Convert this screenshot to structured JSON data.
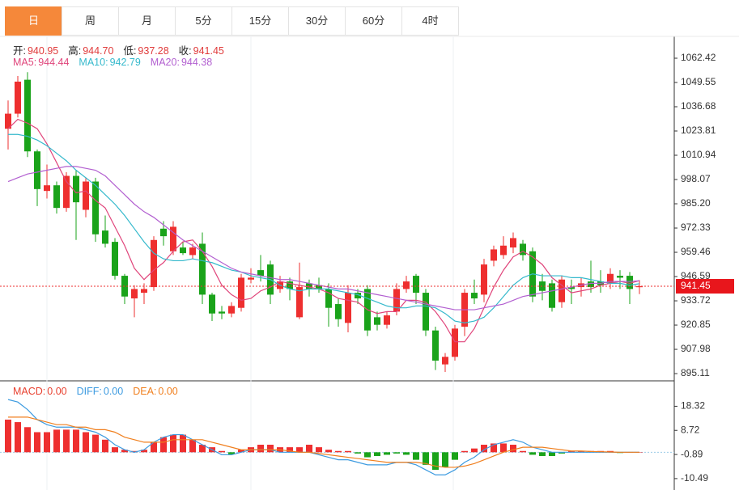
{
  "tabs": {
    "items": [
      "日",
      "周",
      "月",
      "5分",
      "15分",
      "30分",
      "60分",
      "4时"
    ],
    "selected": 0
  },
  "chart_data": [
    {
      "type": "candlestick",
      "up_color": "#ee2f2f",
      "down_color": "#1aa31a",
      "info": [
        {
          "label": "开:",
          "value": 940.95
        },
        {
          "label": "高:",
          "value": 944.7,
          "value_label": "944.70"
        },
        {
          "label": "低:",
          "value": 937.28
        },
        {
          "label": "收:",
          "value": 941.45
        }
      ],
      "open": [
        1025,
        1033,
        1051,
        1013,
        992,
        995,
        983,
        1000,
        982,
        997,
        971,
        965,
        947,
        935,
        938,
        941,
        972,
        960,
        962,
        958,
        964,
        937,
        928,
        927,
        930,
        945,
        950,
        953,
        940,
        944,
        925,
        943,
        942,
        940,
        932,
        922,
        938,
        940,
        925,
        921,
        928,
        940,
        947,
        938,
        918,
        900,
        904,
        920,
        938,
        937,
        955,
        958,
        962,
        964,
        960,
        944,
        943,
        933,
        941,
        941,
        944,
        944,
        943,
        947,
        947,
        940.95
      ],
      "high": [
        1040,
        1053,
        1055,
        1014,
        1006,
        997,
        1002,
        1003,
        999,
        999,
        979,
        967,
        948,
        942,
        943,
        968,
        976,
        976,
        965,
        964,
        970,
        938,
        931,
        933,
        948,
        951,
        958,
        955,
        947,
        946,
        954,
        945,
        946,
        943,
        935,
        942,
        940,
        942,
        928,
        928,
        943,
        947,
        948,
        940,
        920,
        906,
        921,
        940,
        945,
        956,
        963,
        968,
        970,
        966,
        962,
        948,
        945,
        947,
        945,
        946,
        955,
        950,
        951,
        950,
        949,
        944.7
      ],
      "low": [
        1014,
        1031,
        1010,
        984,
        988,
        980,
        981,
        966,
        978,
        965,
        962,
        945,
        932,
        925,
        932,
        939,
        963,
        958,
        958,
        956,
        932,
        923,
        924,
        925,
        928,
        943,
        944,
        932,
        938,
        934,
        924,
        936,
        938,
        920,
        920,
        917,
        932,
        915,
        918,
        919,
        926,
        938,
        932,
        915,
        897,
        896,
        902,
        915,
        932,
        933,
        952,
        956,
        959,
        955,
        933,
        934,
        928,
        930,
        932,
        936,
        938,
        938,
        940,
        940,
        932,
        937.28
      ],
      "close": [
        1033,
        1050,
        1013,
        993,
        995,
        983,
        1000,
        986,
        997,
        969,
        964,
        947,
        936,
        940,
        940,
        966,
        968,
        973,
        959,
        962,
        937,
        927,
        927,
        931,
        946,
        946,
        947,
        937,
        944,
        940,
        941,
        940,
        940,
        930,
        924,
        938,
        935,
        918,
        921,
        926,
        940,
        944,
        938,
        918,
        902,
        904,
        919,
        938,
        935,
        953,
        961,
        963,
        967,
        958,
        936,
        939,
        930,
        945,
        940,
        943,
        941,
        942,
        948,
        946,
        940,
        941.45
      ],
      "lines": [
        {
          "name": "MA5:",
          "color": "#e0457b",
          "current": 944.44,
          "values": [
            1025,
            1030,
            1028,
            1025,
            1017,
            1007,
            997,
            991,
            992,
            987,
            983,
            973,
            963,
            951,
            945,
            950,
            954,
            960,
            965,
            966,
            960,
            952,
            942,
            937,
            934,
            935,
            939,
            941,
            944,
            943,
            942,
            941,
            940,
            938,
            935,
            934,
            933,
            929,
            927,
            928,
            928,
            934,
            934,
            933,
            928,
            921,
            912,
            912,
            919,
            930,
            941,
            950,
            957,
            960,
            957,
            953,
            946,
            942,
            938,
            939,
            940,
            942,
            943,
            944,
            943,
            944.44
          ]
        },
        {
          "name": "MA10:",
          "color": "#35b9cc",
          "current": 942.79,
          "values": [
            1022,
            1022,
            1021,
            1019,
            1016,
            1012,
            1008,
            1003,
            999,
            995,
            990,
            985,
            979,
            972,
            965,
            959,
            956,
            955,
            955,
            956,
            955,
            954,
            952,
            950,
            949,
            947,
            946,
            945,
            942,
            940,
            939,
            940,
            940,
            940,
            939,
            938,
            937,
            935,
            933,
            931,
            930,
            930,
            931,
            931,
            930,
            927,
            923,
            922,
            923,
            925,
            930,
            936,
            942,
            946,
            948,
            947,
            947,
            947,
            946,
            946,
            945,
            944,
            943,
            943,
            942,
            942.79
          ]
        },
        {
          "name": "MA20:",
          "color": "#b25fd0",
          "current": 944.38,
          "values": [
            997,
            999,
            1001,
            1002,
            1003,
            1004,
            1005,
            1005,
            1004,
            1003,
            1000,
            995,
            990,
            985,
            981,
            978,
            974,
            970,
            966,
            963,
            960,
            957,
            954,
            951,
            949,
            948,
            947,
            946,
            945,
            945,
            944,
            943,
            942,
            941,
            940,
            940,
            939,
            938,
            937,
            936,
            935,
            934,
            933,
            932,
            931,
            930,
            929,
            929,
            929,
            930,
            931,
            932,
            934,
            936,
            937,
            938,
            939,
            940,
            941,
            942,
            943,
            943,
            944,
            944,
            944,
            944.38
          ]
        }
      ],
      "ylim": [
        891.7,
        1074.0
      ],
      "yticks": [
        1062.42,
        1049.55,
        1036.68,
        1023.81,
        1010.94,
        998.07,
        {
          "value": 985.2,
          "label": "985.20"
        },
        972.33,
        959.46,
        946.59,
        933.72,
        920.85,
        907.98,
        895.11
      ]
    },
    {
      "type": "macd",
      "up_color": "#ee2f2f",
      "down_color": "#1aa31a",
      "bars": {
        "name": "MACD:",
        "color": "#e8402f",
        "current": 0,
        "current_label": "0.00",
        "values": [
          13,
          12,
          10,
          8,
          8,
          9,
          9,
          9,
          8,
          7,
          5,
          2,
          1,
          0.5,
          1,
          4,
          6,
          7,
          7,
          5,
          3,
          2,
          0.5,
          -0.8,
          1,
          2,
          3,
          3,
          2,
          2,
          2,
          3,
          2,
          1,
          0.5,
          0.5,
          -0.5,
          -2,
          -1.5,
          -1,
          -0.5,
          -1,
          -3,
          -5,
          -7,
          -6,
          -3,
          0.5,
          1.5,
          3,
          3.5,
          3.5,
          3,
          0.5,
          -1,
          -1.5,
          -1.5,
          -0.5,
          0.5,
          0.5,
          0.5,
          0.5,
          0.5,
          -0.3,
          0,
          0
        ]
      },
      "lines": [
        {
          "name": "DIFF:",
          "color": "#3d9be0",
          "current": 0,
          "current_label": "0.00",
          "values": [
            21,
            20,
            17,
            13,
            11,
            10,
            10,
            10,
            9,
            8,
            6,
            3,
            1,
            0,
            1,
            4,
            6,
            7,
            7,
            5,
            3,
            1,
            -1,
            -1,
            0,
            1,
            1,
            1,
            0,
            0,
            0,
            0,
            -1,
            -2,
            -3,
            -3,
            -4,
            -5,
            -5,
            -5,
            -4,
            -4,
            -5,
            -7,
            -9,
            -9,
            -7,
            -4,
            -2,
            1,
            3,
            4,
            5,
            4,
            2,
            1,
            0,
            0,
            0,
            0,
            0,
            0,
            0,
            0,
            0,
            0
          ]
        },
        {
          "name": "DEA:",
          "color": "#f07f1e",
          "current": 0,
          "current_label": "0.00",
          "values": [
            14,
            14,
            14,
            13,
            12,
            11,
            11,
            10,
            10,
            9,
            9,
            8,
            6,
            5,
            4,
            4,
            4,
            5,
            5,
            5,
            5,
            4,
            3,
            2,
            1,
            1,
            1,
            1,
            1,
            0.5,
            0,
            0,
            -0.5,
            -1,
            -1.5,
            -2,
            -2.5,
            -3,
            -3.5,
            -4,
            -4,
            -4,
            -4,
            -4.5,
            -5.5,
            -6,
            -6,
            -5.5,
            -4.5,
            -3,
            -1.5,
            0,
            1,
            2,
            2,
            2,
            1.5,
            1,
            0.5,
            0.5,
            0.3,
            0.2,
            0.1,
            0,
            0,
            0
          ]
        }
      ],
      "ylim": [
        -13.1,
        27.8
      ],
      "yticks": [
        18.32,
        8.72,
        -0.89,
        -10.49
      ]
    }
  ]
}
